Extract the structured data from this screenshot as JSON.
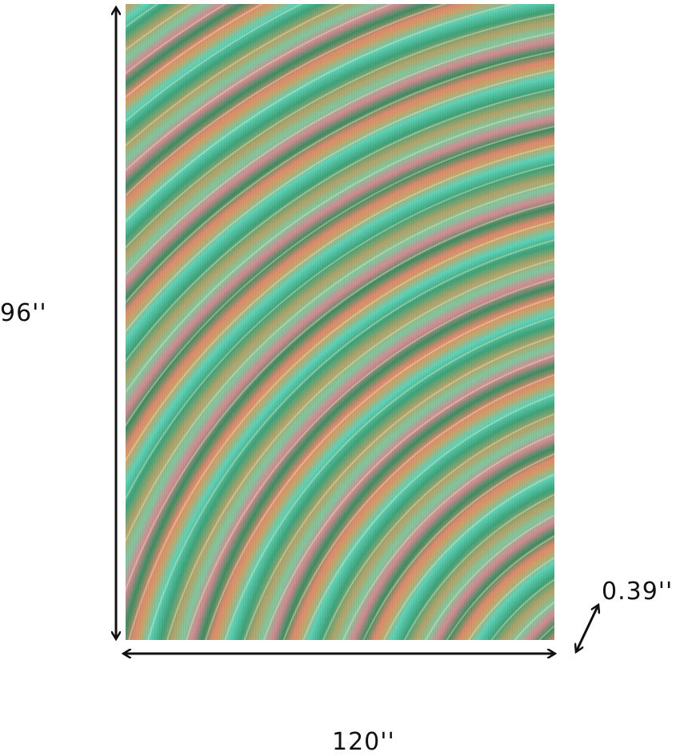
{
  "product_image": {
    "description_colors": [
      "#3fa37a",
      "#5fd3b8",
      "#c9a46a",
      "#e08a6e",
      "#d68a92"
    ]
  },
  "dimensions": {
    "height": "96''",
    "width": "120''",
    "thickness": "0.39''"
  }
}
